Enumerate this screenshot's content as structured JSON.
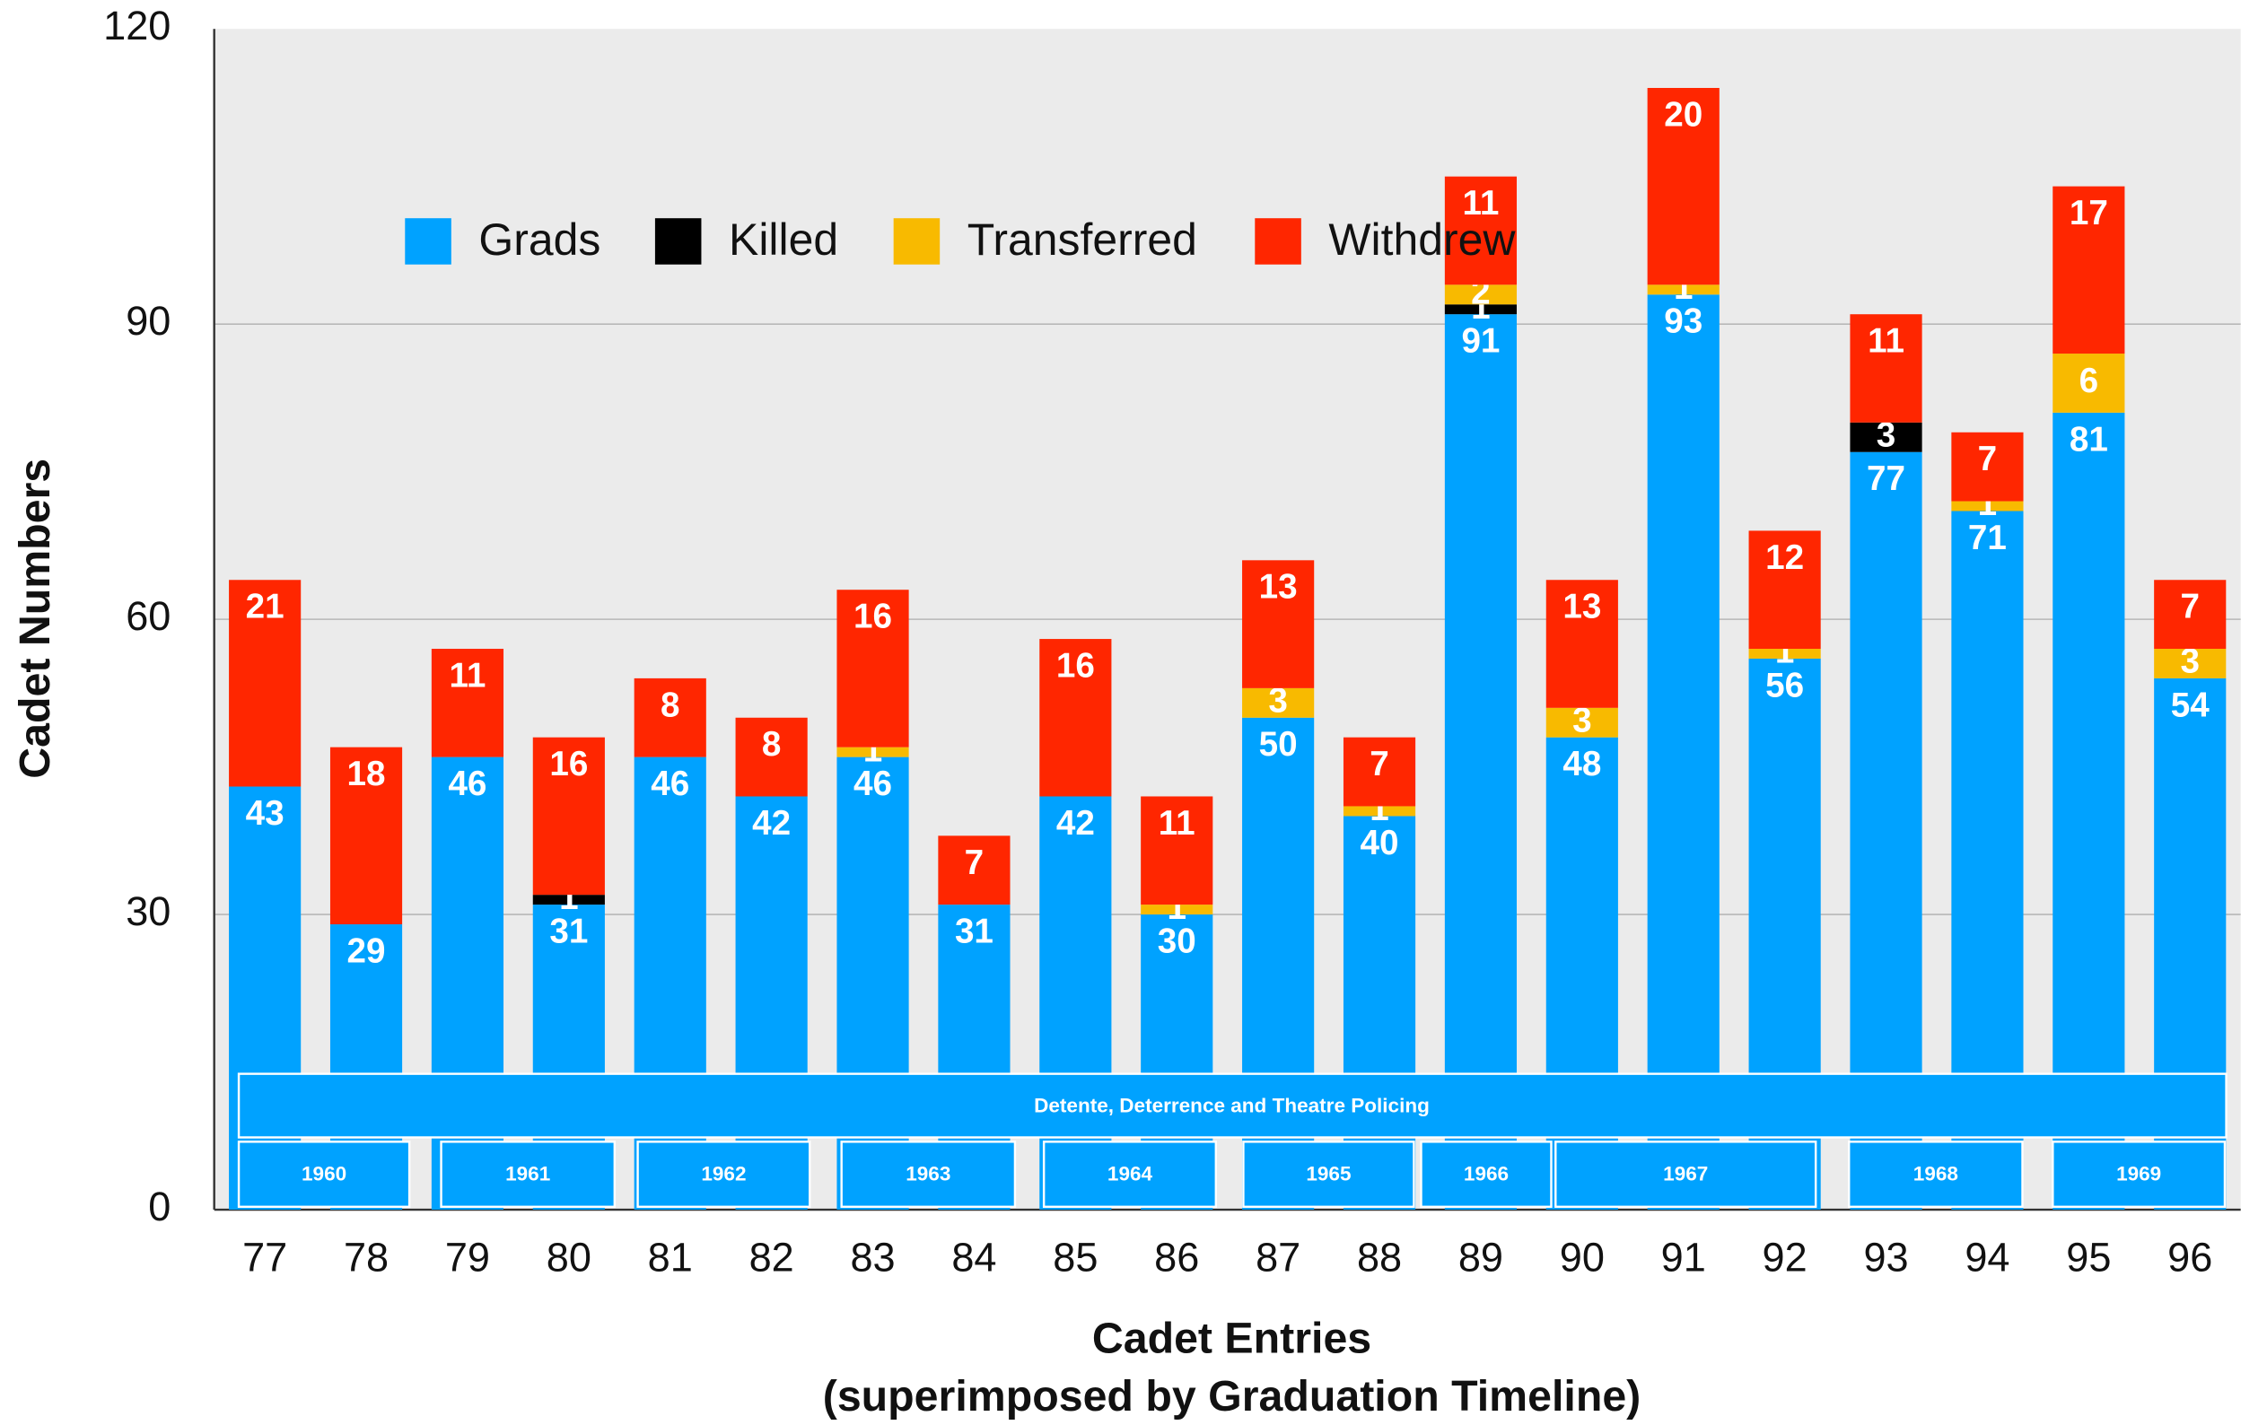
{
  "chart_data": {
    "type": "stacked_bar",
    "xlabel": [
      "Cadet Entries",
      "(superimposed by Graduation Timeline)"
    ],
    "ylabel": "Cadet Numbers",
    "categories": [
      "77",
      "78",
      "79",
      "80",
      "81",
      "82",
      "83",
      "84",
      "85",
      "86",
      "87",
      "88",
      "89",
      "90",
      "91",
      "92",
      "93",
      "94",
      "95",
      "96"
    ],
    "series": [
      {
        "name": "Grads",
        "color": "#00a2ff",
        "values": [
          43,
          29,
          46,
          31,
          46,
          42,
          46,
          31,
          42,
          30,
          50,
          40,
          91,
          48,
          93,
          56,
          77,
          71,
          81,
          54
        ]
      },
      {
        "name": "Killed",
        "color": "#000000",
        "values": [
          0,
          0,
          0,
          1,
          0,
          0,
          0,
          0,
          0,
          0,
          0,
          0,
          1,
          0,
          0,
          0,
          3,
          0,
          0,
          0
        ]
      },
      {
        "name": "Transferred",
        "color": "#f8ba00",
        "values": [
          0,
          0,
          0,
          0,
          0,
          0,
          1,
          0,
          0,
          1,
          3,
          1,
          2,
          3,
          1,
          1,
          0,
          1,
          6,
          3
        ]
      },
      {
        "name": "Withdrew",
        "color": "#ff2600",
        "values": [
          21,
          18,
          11,
          16,
          8,
          8,
          16,
          7,
          16,
          11,
          13,
          7,
          11,
          13,
          20,
          12,
          11,
          7,
          17,
          7
        ]
      }
    ],
    "ylim": [
      0,
      120
    ],
    "yticks": [
      0,
      30,
      60,
      90,
      120
    ],
    "grid": true,
    "legend": "top",
    "annotations": {
      "era": "Detente, Deterrence and Theatre Policing",
      "years": [
        "1960",
        "1961",
        "1962",
        "1963",
        "1964",
        "1965",
        "1966",
        "1967",
        "1968",
        "1969"
      ]
    }
  }
}
